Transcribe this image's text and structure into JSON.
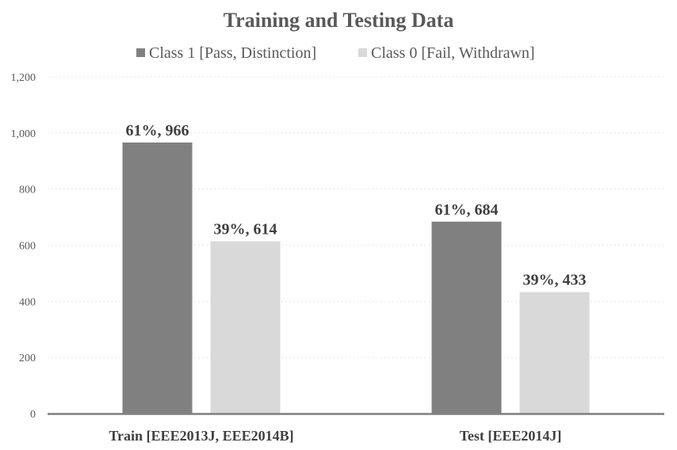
{
  "chart_data": {
    "type": "bar",
    "title": "Training and Testing Data",
    "categories": [
      "Train [EEE2013J, EEE2014B]",
      "Test [EEE2014J]"
    ],
    "series": [
      {
        "name": "Class 1 [Pass, Distinction]",
        "color": "#808080",
        "values": [
          966,
          684
        ],
        "labels": [
          "61%, 966",
          "61%, 684"
        ]
      },
      {
        "name": "Class 0 [Fail, Withdrawn]",
        "color": "#d9d9d9",
        "values": [
          614,
          433
        ],
        "labels": [
          "39%, 614",
          "39%, 433"
        ]
      }
    ],
    "yticks": [
      "0",
      "200",
      "400",
      "600",
      "800",
      "1,000",
      "1,200"
    ],
    "ylim": [
      0,
      1200
    ],
    "grid": true,
    "legend_position": "top"
  }
}
